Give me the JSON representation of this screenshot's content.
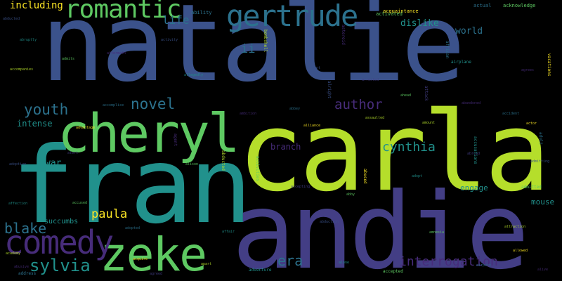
{
  "palette": {
    "background": "#000000",
    "blue": "#3b528b",
    "teal": "#21918c",
    "green": "#5ec962",
    "lime": "#b5de2b",
    "purple": "#472c7a",
    "indigo": "#433e85",
    "aqua": "#2c728e",
    "yellow": "#fde725"
  },
  "words": {
    "natalie": "natalie",
    "carla": "carla",
    "fran": "fran",
    "andie": "andie",
    "cheryl": "cheryl",
    "zeke": "zeke",
    "gertrude": "gertrude",
    "romantic": "romantic",
    "comedy": "comedy",
    "sylvia": "sylvia",
    "novel": "novel",
    "youth": "youth",
    "author": "author",
    "cynthia": "cynthia",
    "interrogation": "interrogation",
    "era": "era",
    "blake": "blake",
    "paula": "paula",
    "life": "life",
    "ii": "ii",
    "including": "including",
    "dislike": "dislike",
    "world": "world",
    "war": "war",
    "intense": "intense",
    "branch": "branch",
    "engage": "engage",
    "mouse": "mouse",
    "succumbs": "succumbs",
    "ability": "ability",
    "acquaintance": "acquaintance",
    "actual": "actual",
    "acknowledge": "acknowledge",
    "activated": "activated",
    "airplane": "airplane",
    "admitted": "admitted",
    "accepted": "accepted",
    "adventure": "adventure",
    "address": "address"
  },
  "tiny_words": [
    "abducted",
    "abruptly",
    "admits",
    "accompanies",
    "aftermath",
    "accomplice",
    "advantage",
    "alert",
    "adoptive",
    "affection",
    "accused",
    "academy",
    "abusive",
    "adopted",
    "acquire",
    "agreed",
    "activity",
    "allegedly",
    "alison",
    "apart",
    "ambition",
    "abbey",
    "alliance",
    "accepting",
    "abduction",
    "alone",
    "ahead",
    "amount",
    "abandoned",
    "accident",
    "actor",
    "abroad",
    "admitting",
    "adopt",
    "amnesia",
    "attraction",
    "alive",
    "airport",
    "allowed",
    "arrested",
    "aunt",
    "affair",
    "abby",
    "assaulted",
    "agrees"
  ],
  "vertical_words": [
    "bombshell",
    "asteroid",
    "african",
    "vacations",
    "attack",
    "alright",
    "accusations",
    "activities",
    "abducted",
    "agent",
    "adult",
    "abused"
  ]
}
